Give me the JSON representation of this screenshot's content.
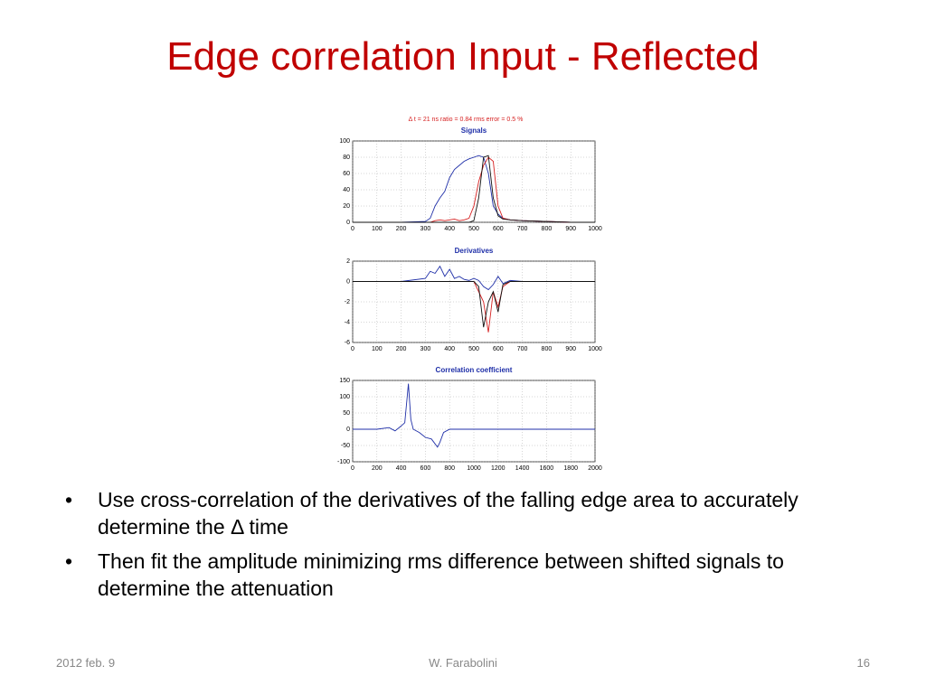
{
  "title": "Edge correlation Input - Reflected",
  "chart_data": [
    {
      "type": "line",
      "annotation": "Δ t = 21 ns   ratio = 0.84    rms error = 0.5 %",
      "title": "Signals",
      "x": [
        0,
        100,
        200,
        300,
        320,
        340,
        360,
        380,
        400,
        420,
        440,
        460,
        480,
        500,
        520,
        540,
        560,
        580,
        600,
        620,
        650,
        700,
        800,
        900,
        1000
      ],
      "series": [
        {
          "color": "#1f2fa8",
          "values": [
            0,
            0,
            0,
            1,
            5,
            20,
            30,
            38,
            55,
            65,
            70,
            75,
            78,
            80,
            82,
            80,
            60,
            20,
            10,
            5,
            3,
            2,
            1,
            0,
            0
          ]
        },
        {
          "color": "#d62020",
          "values": [
            0,
            0,
            0,
            0,
            0,
            2,
            3,
            2,
            3,
            4,
            2,
            3,
            5,
            20,
            50,
            70,
            80,
            75,
            20,
            5,
            3,
            2,
            1,
            0,
            0
          ]
        },
        {
          "color": "#111111",
          "values": [
            0,
            0,
            0,
            0,
            0,
            0,
            0,
            0,
            0,
            0,
            0,
            0,
            0,
            2,
            30,
            80,
            82,
            30,
            8,
            4,
            3,
            2,
            1,
            0,
            0
          ]
        }
      ],
      "xlim": [
        0,
        1000
      ],
      "xticks": [
        0,
        100,
        200,
        300,
        400,
        500,
        600,
        700,
        800,
        900,
        1000
      ],
      "ylim": [
        0,
        100
      ],
      "yticks": [
        0,
        20,
        40,
        60,
        80,
        100
      ],
      "grid": true
    },
    {
      "type": "line",
      "title": "Derivatives",
      "x": [
        0,
        100,
        200,
        300,
        320,
        340,
        360,
        380,
        400,
        420,
        440,
        460,
        480,
        500,
        520,
        540,
        560,
        580,
        600,
        620,
        650,
        700,
        800,
        900,
        1000
      ],
      "series": [
        {
          "color": "#1f2fa8",
          "values": [
            0,
            0,
            0,
            0.3,
            1,
            0.8,
            1.5,
            0.5,
            1.2,
            0.3,
            0.5,
            0.2,
            0.1,
            0.3,
            0.1,
            -0.5,
            -0.8,
            -0.3,
            0.5,
            -0.2,
            0.1,
            0,
            0,
            0,
            0
          ]
        },
        {
          "color": "#d62020",
          "values": [
            0,
            0,
            0,
            0,
            0,
            0,
            0,
            0,
            0,
            0,
            0,
            0,
            0,
            0,
            -1,
            -2,
            -5,
            -1,
            -2.5,
            -0.5,
            0,
            0,
            0,
            0,
            0
          ]
        },
        {
          "color": "#111111",
          "values": [
            0,
            0,
            0,
            0,
            0,
            0,
            0,
            0,
            0,
            0,
            0,
            0,
            0,
            0,
            -0.5,
            -4.5,
            -2,
            -1,
            -3,
            -0.3,
            0,
            0,
            0,
            0,
            0
          ]
        }
      ],
      "xlim": [
        0,
        1000
      ],
      "xticks": [
        0,
        100,
        200,
        300,
        400,
        500,
        600,
        700,
        800,
        900,
        1000
      ],
      "ylim": [
        -6,
        2
      ],
      "yticks": [
        -6,
        -4,
        -2,
        0,
        2
      ],
      "grid": true
    },
    {
      "type": "line",
      "title": "Correlation coefficient",
      "x": [
        0,
        200,
        300,
        350,
        400,
        430,
        450,
        460,
        480,
        500,
        550,
        600,
        650,
        700,
        720,
        750,
        800,
        1000,
        1200,
        1400,
        1600,
        1800,
        2000
      ],
      "series": [
        {
          "color": "#1f2fa8",
          "values": [
            0,
            0,
            5,
            -5,
            10,
            20,
            100,
            140,
            30,
            0,
            -10,
            -25,
            -30,
            -55,
            -40,
            -10,
            0,
            0,
            0,
            0,
            0,
            0,
            0
          ]
        }
      ],
      "xlim": [
        0,
        2000
      ],
      "xticks": [
        0,
        200,
        400,
        600,
        800,
        1000,
        1200,
        1400,
        1600,
        1800,
        2000
      ],
      "ylim": [
        -100,
        150
      ],
      "yticks": [
        -100,
        -50,
        0,
        50,
        100,
        150
      ],
      "grid": true
    }
  ],
  "bullets": [
    "Use cross-correlation of the derivatives of the falling edge area to accurately determine the Δ time",
    "Then fit the amplitude minimizing rms difference between shifted signals to determine the attenuation"
  ],
  "footer": {
    "date": "2012 feb. 9",
    "author": "W. Farabolini",
    "page": "16"
  }
}
